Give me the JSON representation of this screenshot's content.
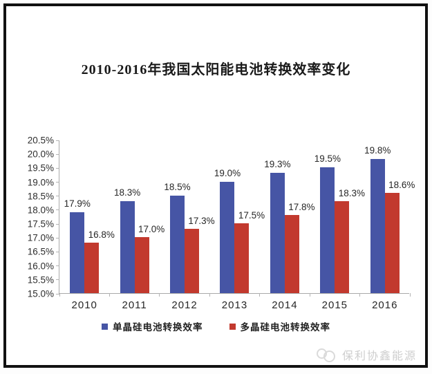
{
  "title": "2010-2016年我国太阳能电池转换效率变化",
  "chart_data": {
    "type": "bar",
    "title": "2010-2016年我国太阳能电池转换效率变化",
    "categories": [
      "2010",
      "2011",
      "2012",
      "2013",
      "2014",
      "2015",
      "2016"
    ],
    "series": [
      {
        "name": "单晶硅电池转换效率",
        "color": "#4655a5",
        "values": [
          17.9,
          18.3,
          18.5,
          19.0,
          19.3,
          19.5,
          19.8
        ],
        "labels": [
          "17.9%",
          "18.3%",
          "18.5%",
          "19.0%",
          "19.3%",
          "19.5%",
          "19.8%"
        ]
      },
      {
        "name": "多晶硅电池转换效率",
        "color": "#c2392e",
        "values": [
          16.8,
          17.0,
          17.3,
          17.5,
          17.8,
          18.3,
          18.6
        ],
        "labels": [
          "16.8%",
          "17.0%",
          "17.3%",
          "17.5%",
          "17.8%",
          "18.3%",
          "18.6%"
        ]
      }
    ],
    "ylim": [
      15.0,
      20.5
    ],
    "ytick_step": 0.5,
    "yticks": [
      "20.5%",
      "20.0%",
      "19.5%",
      "19.0%",
      "18.5%",
      "18.0%",
      "17.5%",
      "17.0%",
      "16.5%",
      "16.0%",
      "15.5%",
      "15.0%"
    ],
    "grid": false,
    "legend_position": "bottom"
  },
  "watermark": {
    "text": "保利协鑫能源"
  }
}
